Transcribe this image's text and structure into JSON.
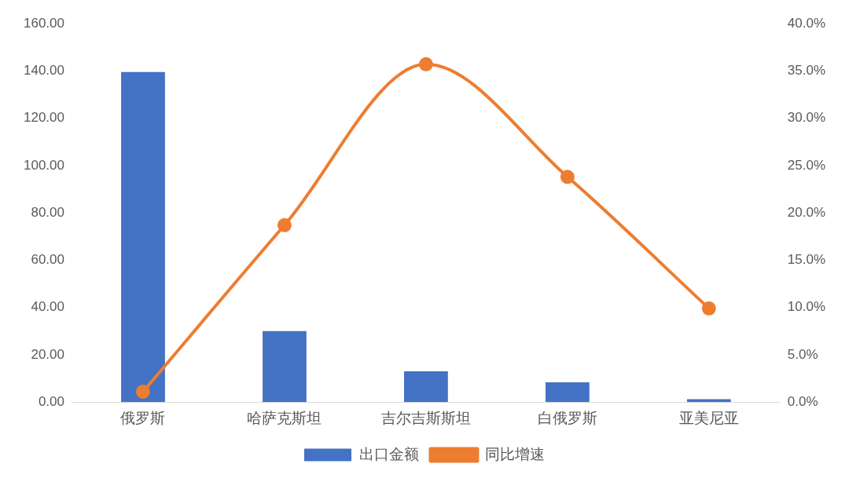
{
  "chart_data": {
    "type": "bar",
    "categories": [
      "俄罗斯",
      "哈萨克斯坦",
      "吉尔吉斯斯坦",
      "白俄罗斯",
      "亚美尼亚"
    ],
    "series": [
      {
        "name": "出口金额",
        "color": "#4472c4",
        "values": [
          139.5,
          30.0,
          13.0,
          8.4,
          1.2
        ]
      },
      {
        "name": "同比增速",
        "type": "line",
        "axis": "y2",
        "color": "#ed7d31",
        "marker": "circle",
        "line_style": "solid",
        "values": [
          1.1,
          18.7,
          35.7,
          23.8,
          9.9
        ]
      }
    ],
    "ylim": [
      0,
      160
    ],
    "yticks": [
      {
        "value": 0,
        "label": "0.00"
      },
      {
        "value": 20,
        "label": "20.00"
      },
      {
        "value": 40,
        "label": "40.00"
      },
      {
        "value": 60,
        "label": "60.00"
      },
      {
        "value": 80,
        "label": "80.00"
      },
      {
        "value": 100,
        "label": "100.00"
      },
      {
        "value": 120,
        "label": "120.00"
      },
      {
        "value": 140,
        "label": "140.00"
      },
      {
        "value": 160,
        "label": "160.00"
      }
    ],
    "y2lim": [
      0,
      40
    ],
    "y2ticks": [
      {
        "value": 0,
        "label": "0.0%"
      },
      {
        "value": 5,
        "label": "5.0%"
      },
      {
        "value": 10,
        "label": "10.0%"
      },
      {
        "value": 15,
        "label": "15.0%"
      },
      {
        "value": 20,
        "label": "20.0%"
      },
      {
        "value": 25,
        "label": "25.0%"
      },
      {
        "value": 30,
        "label": "30.0%"
      },
      {
        "value": 35,
        "label": "35.0%"
      },
      {
        "value": 40,
        "label": "40.0%"
      }
    ],
    "grid": false,
    "legend": "bottom"
  }
}
